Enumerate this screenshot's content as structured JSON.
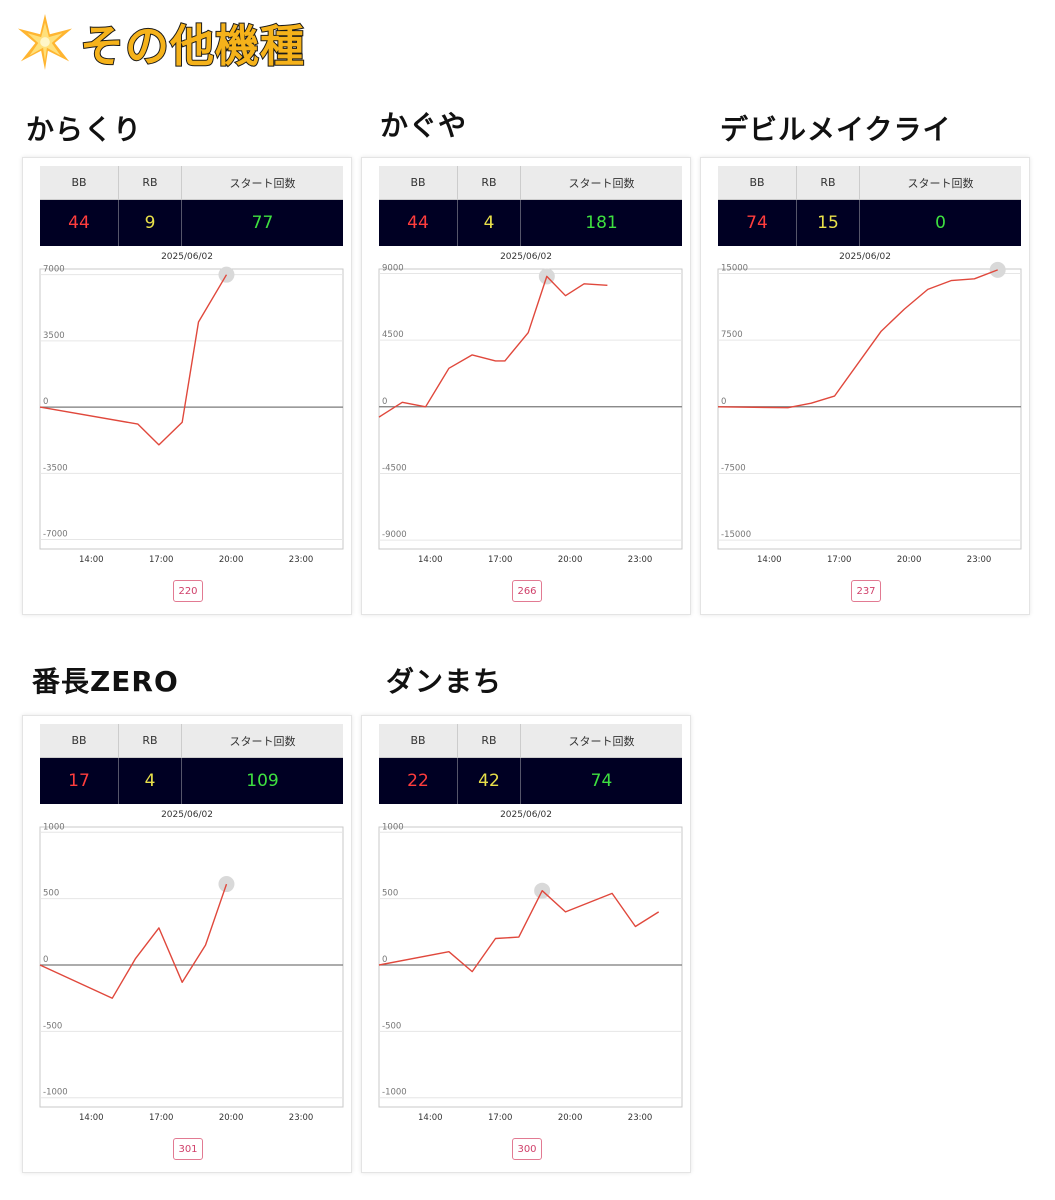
{
  "page": {
    "title": "その他機種",
    "icon": "star-icon"
  },
  "colors": {
    "line": "#e0483c",
    "highlight": "#d9d9d9",
    "bb": "#ff3d3d",
    "rb": "#e8e04a",
    "start": "#3ee040"
  },
  "chart_data": [
    {
      "type": "line",
      "name": "からくり",
      "date": "2025/06/02",
      "stats": {
        "bb_label": "BB",
        "rb_label": "RB",
        "start_label": "スタート回数",
        "bb": "44",
        "rb": "9",
        "start": "77"
      },
      "games_badge": "220",
      "x_ticks": [
        {
          "label": "14:00",
          "x": 14
        },
        {
          "label": "17:00",
          "x": 17
        },
        {
          "label": "20:00",
          "x": 20
        },
        {
          "label": "23:00",
          "x": 23
        }
      ],
      "y_ticks": [
        {
          "label": "7000",
          "y": 7000
        },
        {
          "label": "3500",
          "y": 3500
        },
        {
          "label": "0",
          "y": 0
        },
        {
          "label": "-3500",
          "y": -3500
        },
        {
          "label": "-7000",
          "y": -7000
        }
      ],
      "xlim": [
        11.8,
        24.8
      ],
      "ylim": [
        -7500,
        7300
      ],
      "x": [
        11.8,
        16.0,
        16.9,
        17.9,
        18.6,
        19.8
      ],
      "y": [
        0,
        -900,
        -2000,
        -800,
        4500,
        7000
      ],
      "highlight_index": 5
    },
    {
      "type": "line",
      "name": "かぐや",
      "date": "2025/06/02",
      "stats": {
        "bb_label": "BB",
        "rb_label": "RB",
        "start_label": "スタート回数",
        "bb": "44",
        "rb": "4",
        "start": "181"
      },
      "games_badge": "266",
      "x_ticks": [
        {
          "label": "14:00",
          "x": 14
        },
        {
          "label": "17:00",
          "x": 17
        },
        {
          "label": "20:00",
          "x": 20
        },
        {
          "label": "23:00",
          "x": 23
        }
      ],
      "y_ticks": [
        {
          "label": "9000",
          "y": 9000
        },
        {
          "label": "4500",
          "y": 4500
        },
        {
          "label": "0",
          "y": 0
        },
        {
          "label": "-4500",
          "y": -4500
        },
        {
          "label": "-9000",
          "y": -9000
        }
      ],
      "xlim": [
        11.8,
        24.8
      ],
      "ylim": [
        -9600,
        9300
      ],
      "x": [
        11.8,
        12.8,
        13.8,
        14.8,
        15.8,
        16.8,
        17.2,
        18.2,
        19.0,
        19.8,
        20.6,
        21.6
      ],
      "y": [
        -700,
        300,
        0,
        2600,
        3500,
        3100,
        3100,
        5000,
        8800,
        7500,
        8300,
        8200
      ],
      "highlight_index": 8
    },
    {
      "type": "line",
      "name": "デビルメイクライ",
      "date": "2025/06/02",
      "stats": {
        "bb_label": "BB",
        "rb_label": "RB",
        "start_label": "スタート回数",
        "bb": "74",
        "rb": "15",
        "start": "0"
      },
      "games_badge": "237",
      "x_ticks": [
        {
          "label": "14:00",
          "x": 14
        },
        {
          "label": "17:00",
          "x": 17
        },
        {
          "label": "20:00",
          "x": 20
        },
        {
          "label": "23:00",
          "x": 23
        }
      ],
      "y_ticks": [
        {
          "label": "15000",
          "y": 15000
        },
        {
          "label": "7500",
          "y": 7500
        },
        {
          "label": "0",
          "y": 0
        },
        {
          "label": "-7500",
          "y": -7500
        },
        {
          "label": "-15000",
          "y": -15000
        }
      ],
      "xlim": [
        11.8,
        24.8
      ],
      "ylim": [
        -16000,
        15500
      ],
      "x": [
        11.8,
        14.8,
        15.8,
        16.8,
        18.8,
        19.8,
        20.8,
        21.8,
        22.8,
        23.8
      ],
      "y": [
        0,
        -100,
        400,
        1200,
        8500,
        11000,
        13200,
        14200,
        14400,
        15400
      ],
      "highlight_index": 9
    },
    {
      "type": "line",
      "name": "番長ZERO",
      "date": "2025/06/02",
      "stats": {
        "bb_label": "BB",
        "rb_label": "RB",
        "start_label": "スタート回数",
        "bb": "17",
        "rb": "4",
        "start": "109"
      },
      "games_badge": "301",
      "x_ticks": [
        {
          "label": "14:00",
          "x": 14
        },
        {
          "label": "17:00",
          "x": 17
        },
        {
          "label": "20:00",
          "x": 20
        },
        {
          "label": "23:00",
          "x": 23
        }
      ],
      "y_ticks": [
        {
          "label": "1000",
          "y": 1000
        },
        {
          "label": "500",
          "y": 500
        },
        {
          "label": "0",
          "y": 0
        },
        {
          "label": "-500",
          "y": -500
        },
        {
          "label": "-1000",
          "y": -1000
        }
      ],
      "xlim": [
        11.8,
        24.8
      ],
      "ylim": [
        -1070,
        1040
      ],
      "x": [
        11.8,
        14.9,
        15.9,
        16.9,
        17.9,
        18.9,
        19.8
      ],
      "y": [
        0,
        -250,
        50,
        280,
        -130,
        150,
        610
      ],
      "highlight_index": 6
    },
    {
      "type": "line",
      "name": "ダンまち",
      "date": "2025/06/02",
      "stats": {
        "bb_label": "BB",
        "rb_label": "RB",
        "start_label": "スタート回数",
        "bb": "22",
        "rb": "42",
        "start": "74"
      },
      "games_badge": "300",
      "x_ticks": [
        {
          "label": "14:00",
          "x": 14
        },
        {
          "label": "17:00",
          "x": 17
        },
        {
          "label": "20:00",
          "x": 20
        },
        {
          "label": "23:00",
          "x": 23
        }
      ],
      "y_ticks": [
        {
          "label": "1000",
          "y": 1000
        },
        {
          "label": "500",
          "y": 500
        },
        {
          "label": "0",
          "y": 0
        },
        {
          "label": "-500",
          "y": -500
        },
        {
          "label": "-1000",
          "y": -1000
        }
      ],
      "xlim": [
        11.8,
        24.8
      ],
      "ylim": [
        -1070,
        1040
      ],
      "x": [
        11.8,
        14.8,
        15.8,
        16.8,
        17.8,
        18.8,
        19.8,
        21.8,
        22.8,
        23.8
      ],
      "y": [
        0,
        100,
        -50,
        200,
        210,
        560,
        400,
        540,
        290,
        400
      ],
      "highlight_index": 5
    }
  ]
}
